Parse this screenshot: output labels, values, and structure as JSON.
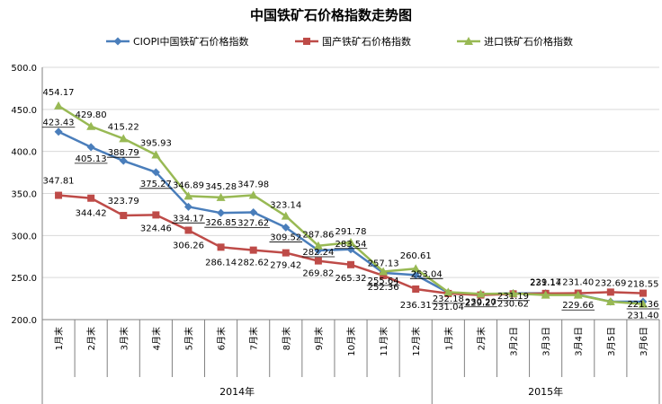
{
  "chart_data": {
    "type": "line",
    "title": "中国铁矿石价格指数走势图",
    "categories": [
      "1月末",
      "2月末",
      "3月末",
      "4月末",
      "5月末",
      "6月末",
      "7月末",
      "8月末",
      "9月末",
      "10月末",
      "11月末",
      "12月末",
      "1月末",
      "2月末",
      "3月2日",
      "3月3日",
      "3月4日",
      "3月5日",
      "3月6日"
    ],
    "year_groups": [
      {
        "label": "2014年",
        "start": 0,
        "end": 11
      },
      {
        "label": "2015年",
        "start": 12,
        "end": 18
      }
    ],
    "ylim": [
      200,
      500
    ],
    "yticks": [
      "200.0",
      "250.0",
      "300.0",
      "350.0",
      "400.0",
      "450.0",
      "500.0"
    ],
    "legend_position": "top",
    "series": [
      {
        "name": "CIOPI中国铁矿石价格指数",
        "color": "#4a7ebb",
        "marker": "diamond",
        "values": [
          423.43,
          405.13,
          388.79,
          375.27,
          334.17,
          326.85,
          327.62,
          309.52,
          282.24,
          283.54,
          255.64,
          253.04,
          232.18,
          230.2,
          231.19,
          231.4,
          229.66,
          221.36,
          221.36
        ],
        "labels": [
          "423.43",
          "405.13",
          "388.79",
          "375.27",
          "334.17",
          "326.85",
          "327.62",
          "309.52",
          "282.24",
          "283.54",
          "255.64",
          "253.04",
          "232.18",
          "230.20",
          "231.19",
          "",
          "229.66",
          "",
          "221.36"
        ]
      },
      {
        "name": "国产铁矿石价格指数",
        "color": "#be4b48",
        "marker": "square",
        "values": [
          347.81,
          344.42,
          323.79,
          324.46,
          306.26,
          286.14,
          282.62,
          279.42,
          269.82,
          265.32,
          252.36,
          236.31,
          231.04,
          229.27,
          230.62,
          231.14,
          231.4,
          232.69,
          231.4
        ],
        "labels": [
          "347.81",
          "344.42",
          "323.79",
          "324.46",
          "306.26",
          "286.14",
          "282.62",
          "279.42",
          "269.82",
          "265.32",
          "252.36",
          "236.31",
          "231.04",
          "229.27",
          "230.62",
          "231.14",
          "231.40",
          "232.69",
          "231.40"
        ]
      },
      {
        "name": "进口铁矿石价格指数",
        "color": "#98b954",
        "marker": "triangle",
        "values": [
          454.17,
          429.8,
          415.22,
          395.93,
          346.89,
          345.28,
          347.98,
          323.14,
          287.86,
          291.78,
          257.13,
          260.61,
          232.69,
          230.62,
          231.14,
          229.17,
          229.17,
          221.36,
          218.55
        ],
        "labels": [
          "454.17",
          "429.80",
          "415.22",
          "395.93",
          "346.89",
          "345.28",
          "347.98",
          "323.14",
          "287.86",
          "291.78",
          "257.13",
          "260.61",
          "",
          "",
          "",
          "229.17",
          "",
          "",
          "218.55"
        ]
      }
    ]
  }
}
